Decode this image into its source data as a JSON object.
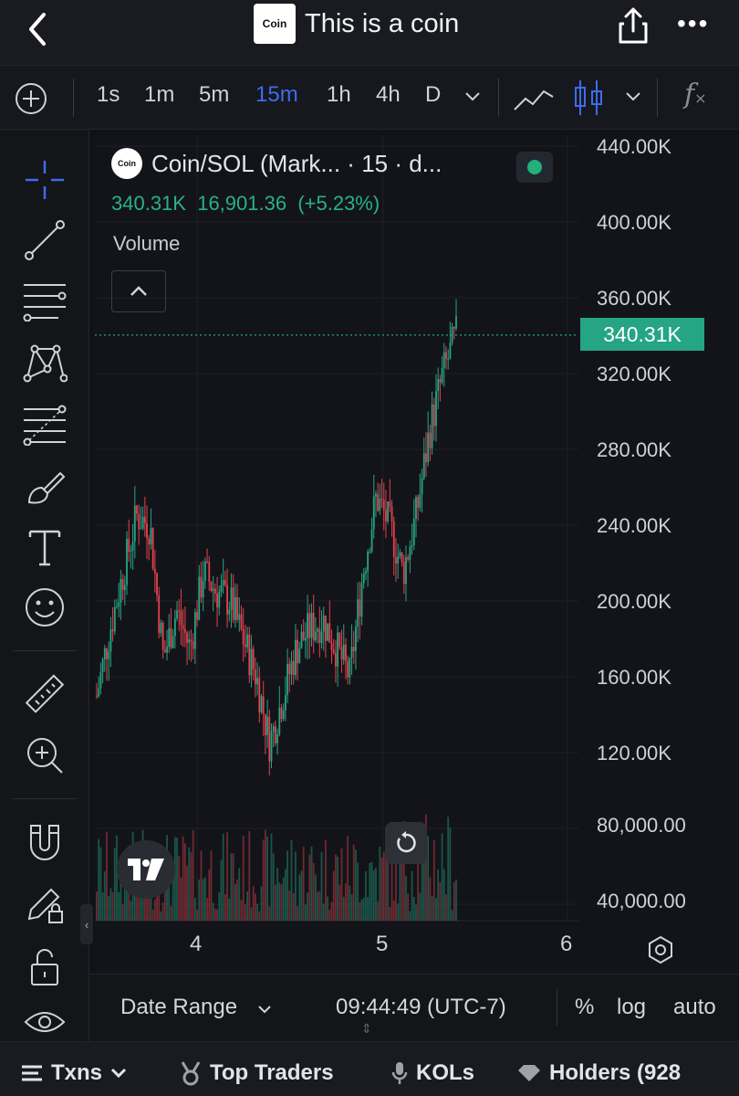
{
  "header": {
    "logo_text": "Coin",
    "title": "This is a coin"
  },
  "toolbar": {
    "intervals": [
      "1s",
      "1m",
      "5m",
      "15m",
      "1h",
      "4h",
      "D"
    ],
    "active_interval": "15m"
  },
  "legend": {
    "logo_text": "Coin",
    "title": "Coin/SOL (Mark...  · 15 · d...",
    "price": "340.31K",
    "change_abs": "16,901.36",
    "change_pct": "(+5.23%)",
    "volume_label": "Volume"
  },
  "last_price_tag": "340.31K",
  "colors": {
    "up": "#26a584",
    "down": "#e3424f",
    "accent": "#3c6cf0"
  },
  "chart_data": {
    "type": "candlestick",
    "x_ticks": [
      "4",
      "5",
      "6"
    ],
    "price_axis_labels": [
      "440.00K",
      "400.00K",
      "360.00K",
      "320.00K",
      "280.00K",
      "240.00K",
      "200.00K",
      "160.00K",
      "120.00K"
    ],
    "volume_axis_labels": [
      "80,000.00",
      "40,000.00"
    ],
    "price_range": [
      100000,
      450000
    ],
    "last_price": 340310,
    "price_series_approx": [
      150000,
      185000,
      215000,
      245000,
      240000,
      170000,
      195000,
      175000,
      215000,
      205000,
      200000,
      180000,
      160000,
      125000,
      150000,
      175000,
      185000,
      190000,
      175000,
      160000,
      215000,
      255000,
      240000,
      215000,
      245000,
      290000,
      320000,
      340310
    ]
  },
  "range_bar": {
    "date_range": "Date Range",
    "time": "09:44:49 (UTC-7)",
    "percent": "%",
    "log": "log",
    "auto": "auto"
  },
  "bottom_tabs": {
    "txns": "Txns",
    "top_traders": "Top Traders",
    "kols": "KOLs",
    "holders": "Holders (928"
  }
}
